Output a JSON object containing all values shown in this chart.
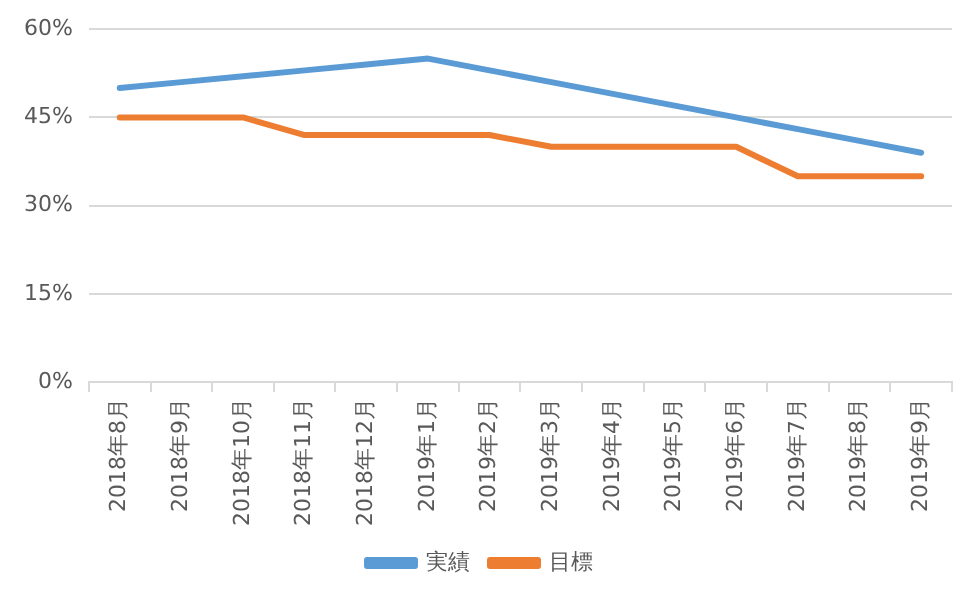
{
  "chart_data": {
    "type": "line",
    "categories": [
      "2018年8月",
      "2018年9月",
      "2018年10月",
      "2018年11月",
      "2018年12月",
      "2019年1月",
      "2019年2月",
      "2019年3月",
      "2019年4月",
      "2019年5月",
      "2019年6月",
      "2019年7月",
      "2019年8月",
      "2019年9月"
    ],
    "series": [
      {
        "name": "実績",
        "color": "#5b9bd5",
        "values": [
          50,
          51,
          52,
          53,
          54,
          55,
          53,
          51,
          49,
          47,
          45,
          43,
          41,
          39
        ]
      },
      {
        "name": "目標",
        "color": "#ed7d31",
        "values": [
          45,
          45,
          45,
          42,
          42,
          42,
          42,
          40,
          40,
          40,
          40,
          35,
          35,
          35
        ]
      }
    ],
    "ylim": [
      0,
      60
    ],
    "yticks": [
      {
        "value": 0,
        "label": "0%"
      },
      {
        "value": 15,
        "label": "15%"
      },
      {
        "value": 30,
        "label": "30%"
      },
      {
        "value": 45,
        "label": "45%"
      },
      {
        "value": 60,
        "label": "60%"
      }
    ],
    "grid": "y",
    "legend": "bottom",
    "marker": "none",
    "line_style": "solid"
  }
}
